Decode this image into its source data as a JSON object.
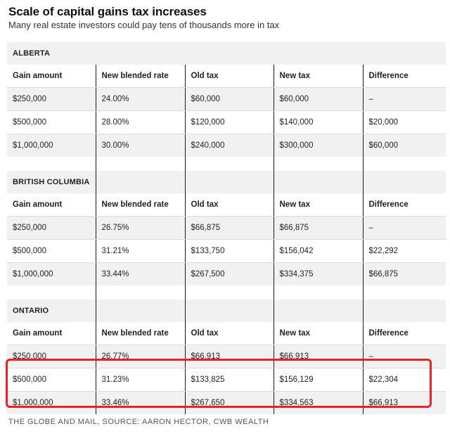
{
  "title": "Scale of capital gains tax increases",
  "subtitle": "Many real estate investors could pay tens of thousands more in tax",
  "columns": [
    "Gain amount",
    "New blended rate",
    "Old tax",
    "New tax",
    "Difference"
  ],
  "sections": [
    {
      "name": "ALBERTA",
      "rows": [
        [
          "$250,000",
          "24.00%",
          "$60,000",
          "$60,000",
          "–"
        ],
        [
          "$500,000",
          "28.00%",
          "$120,000",
          "$140,000",
          "$20,000"
        ],
        [
          "$1,000,000",
          "30.00%",
          "$240,000",
          "$300,000",
          "$60,000"
        ]
      ]
    },
    {
      "name": "BRITISH COLUMBIA",
      "rows": [
        [
          "$250,000",
          "26.75%",
          "$66,875",
          "$66,875",
          "–"
        ],
        [
          "$500,000",
          "31.21%",
          "$133,750",
          "$156,042",
          "$22,292"
        ],
        [
          "$1,000,000",
          "33.44%",
          "$267,500",
          "$334,375",
          "$66,875"
        ]
      ]
    },
    {
      "name": "ONTARIO",
      "rows": [
        [
          "$250,000",
          "26.77%",
          "$66,913",
          "$66,913",
          "–"
        ],
        [
          "$500,000",
          "31.23%",
          "$133,825",
          "$156,129",
          "$22,304"
        ],
        [
          "$1,000,000",
          "33.46%",
          "$267,650",
          "$334,563",
          "$66,913"
        ]
      ]
    }
  ],
  "highlight_color": "#e8202a",
  "footer": "THE GLOBE AND MAIL, SOURCE: AARON HECTOR, CWB WEALTH"
}
